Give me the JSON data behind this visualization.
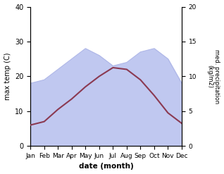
{
  "months": [
    "Jan",
    "Feb",
    "Mar",
    "Apr",
    "May",
    "Jun",
    "Jul",
    "Aug",
    "Sep",
    "Oct",
    "Nov",
    "Dec"
  ],
  "temp_max": [
    6.0,
    7.0,
    10.5,
    13.5,
    17.0,
    20.0,
    22.5,
    22.0,
    19.0,
    14.5,
    9.5,
    6.5
  ],
  "precipitation": [
    9.0,
    9.5,
    11.0,
    12.5,
    14.0,
    13.0,
    11.5,
    12.0,
    13.5,
    14.0,
    12.5,
    9.0
  ],
  "temp_color": "#8B3A52",
  "precip_fill_color": "#c0c8f0",
  "precip_line_color": "#b0b8e8",
  "left_ylim": [
    0,
    40
  ],
  "right_ylim": [
    0,
    20
  ],
  "left_yticks": [
    0,
    10,
    20,
    30,
    40
  ],
  "right_yticks": [
    0,
    5,
    10,
    15,
    20
  ],
  "xlabel": "date (month)",
  "ylabel_left": "max temp (C)",
  "ylabel_right": "med. precipitation\n(kg/m2)",
  "fig_width": 3.18,
  "fig_height": 2.47,
  "dpi": 100
}
